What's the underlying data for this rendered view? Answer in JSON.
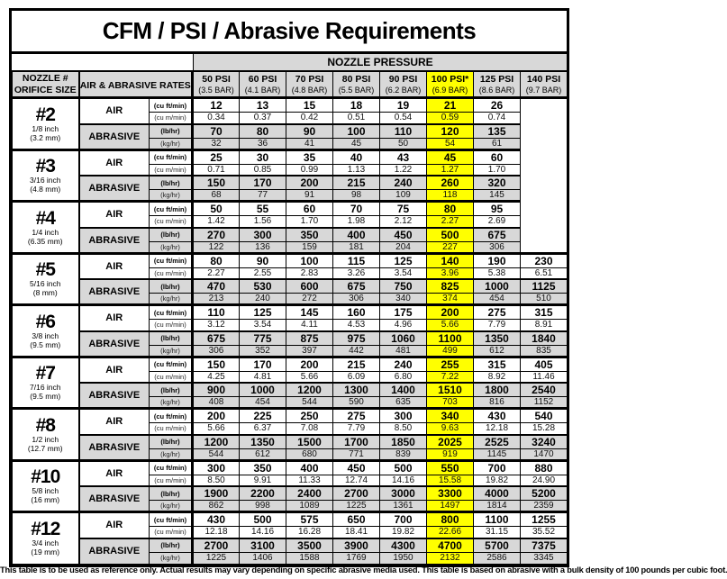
{
  "title": "CFM / PSI / Abrasive Requirements",
  "pressure_band": {
    "label": "NOZZLE PRESSURE"
  },
  "headers": {
    "nozzle_line1": "NOZZLE #",
    "nozzle_line2": "ORIFICE SIZE",
    "rates": "AIR & ABRASIVE RATES"
  },
  "pressure_columns": [
    {
      "psi": "50 PSI",
      "bar": "(3.5 BAR)",
      "highlight": false
    },
    {
      "psi": "60 PSI",
      "bar": "(4.1 BAR)",
      "highlight": false
    },
    {
      "psi": "70 PSI",
      "bar": "(4.8 BAR)",
      "highlight": false
    },
    {
      "psi": "80 PSI",
      "bar": "(5.5 BAR)",
      "highlight": false
    },
    {
      "psi": "90 PSI",
      "bar": "(6.2 BAR)",
      "highlight": false
    },
    {
      "psi": "100 PSI*",
      "bar": "(6.9 BAR)",
      "highlight": true
    },
    {
      "psi": "125 PSI",
      "bar": "(8.6 BAR)",
      "highlight": false
    },
    {
      "psi": "140 PSI",
      "bar": "(9.7 BAR)",
      "highlight": false
    }
  ],
  "rate_labels": {
    "air": "AIR",
    "abrasive": "ABRASIVE"
  },
  "unit_labels": [
    "(cu ft/min)",
    "(cu m/min)",
    "(lb/hr)",
    "(kg/hr)"
  ],
  "nozzles": [
    {
      "number": "#2",
      "inch": "1/8 inch",
      "mm": "(3.2 mm)",
      "rows": [
        [
          "12",
          "13",
          "15",
          "18",
          "19",
          "21",
          "26",
          ""
        ],
        [
          "0.34",
          "0.37",
          "0.42",
          "0.51",
          "0.54",
          "0.59",
          "0.74",
          ""
        ],
        [
          "70",
          "80",
          "90",
          "100",
          "110",
          "120",
          "135",
          ""
        ],
        [
          "32",
          "36",
          "41",
          "45",
          "50",
          "54",
          "61",
          ""
        ]
      ]
    },
    {
      "number": "#3",
      "inch": "3/16 inch",
      "mm": "(4.8 mm)",
      "rows": [
        [
          "25",
          "30",
          "35",
          "40",
          "43",
          "45",
          "60",
          ""
        ],
        [
          "0.71",
          "0.85",
          "0.99",
          "1.13",
          "1.22",
          "1.27",
          "1.70",
          ""
        ],
        [
          "150",
          "170",
          "200",
          "215",
          "240",
          "260",
          "320",
          ""
        ],
        [
          "68",
          "77",
          "91",
          "98",
          "109",
          "118",
          "145",
          ""
        ]
      ]
    },
    {
      "number": "#4",
      "inch": "1/4 inch",
      "mm": "(6.35 mm)",
      "rows": [
        [
          "50",
          "55",
          "60",
          "70",
          "75",
          "80",
          "95",
          ""
        ],
        [
          "1.42",
          "1.56",
          "1.70",
          "1.98",
          "2.12",
          "2.27",
          "2.69",
          ""
        ],
        [
          "270",
          "300",
          "350",
          "400",
          "450",
          "500",
          "675",
          ""
        ],
        [
          "122",
          "136",
          "159",
          "181",
          "204",
          "227",
          "306",
          ""
        ]
      ]
    },
    {
      "number": "#5",
      "inch": "5/16 inch",
      "mm": "(8 mm)",
      "rows": [
        [
          "80",
          "90",
          "100",
          "115",
          "125",
          "140",
          "190",
          "230"
        ],
        [
          "2.27",
          "2.55",
          "2.83",
          "3.26",
          "3.54",
          "3.96",
          "5.38",
          "6.51"
        ],
        [
          "470",
          "530",
          "600",
          "675",
          "750",
          "825",
          "1000",
          "1125"
        ],
        [
          "213",
          "240",
          "272",
          "306",
          "340",
          "374",
          "454",
          "510"
        ]
      ]
    },
    {
      "number": "#6",
      "inch": "3/8 inch",
      "mm": "(9.5 mm)",
      "rows": [
        [
          "110",
          "125",
          "145",
          "160",
          "175",
          "200",
          "275",
          "315"
        ],
        [
          "3.12",
          "3.54",
          "4.11",
          "4.53",
          "4.96",
          "5.66",
          "7.79",
          "8.91"
        ],
        [
          "675",
          "775",
          "875",
          "975",
          "1060",
          "1100",
          "1350",
          "1840"
        ],
        [
          "306",
          "352",
          "397",
          "442",
          "481",
          "499",
          "612",
          "835"
        ]
      ]
    },
    {
      "number": "#7",
      "inch": "7/16 inch",
      "mm": "(9.5 mm)",
      "rows": [
        [
          "150",
          "170",
          "200",
          "215",
          "240",
          "255",
          "315",
          "405"
        ],
        [
          "4.25",
          "4.81",
          "5.66",
          "6.09",
          "6.80",
          "7.22",
          "8.92",
          "11.46"
        ],
        [
          "900",
          "1000",
          "1200",
          "1300",
          "1400",
          "1510",
          "1800",
          "2540"
        ],
        [
          "408",
          "454",
          "544",
          "590",
          "635",
          "703",
          "816",
          "1152"
        ]
      ]
    },
    {
      "number": "#8",
      "inch": "1/2 inch",
      "mm": "(12.7 mm)",
      "rows": [
        [
          "200",
          "225",
          "250",
          "275",
          "300",
          "340",
          "430",
          "540"
        ],
        [
          "5.66",
          "6.37",
          "7.08",
          "7.79",
          "8.50",
          "9.63",
          "12.18",
          "15.28"
        ],
        [
          "1200",
          "1350",
          "1500",
          "1700",
          "1850",
          "2025",
          "2525",
          "3240"
        ],
        [
          "544",
          "612",
          "680",
          "771",
          "839",
          "919",
          "1145",
          "1470"
        ]
      ]
    },
    {
      "number": "#10",
      "inch": "5/8 inch",
      "mm": "(16 mm)",
      "rows": [
        [
          "300",
          "350",
          "400",
          "450",
          "500",
          "550",
          "700",
          "880"
        ],
        [
          "8.50",
          "9.91",
          "11.33",
          "12.74",
          "14.16",
          "15.58",
          "19.82",
          "24.90"
        ],
        [
          "1900",
          "2200",
          "2400",
          "2700",
          "3000",
          "3300",
          "4000",
          "5200"
        ],
        [
          "862",
          "998",
          "1089",
          "1225",
          "1361",
          "1497",
          "1814",
          "2359"
        ]
      ]
    },
    {
      "number": "#12",
      "inch": "3/4 inch",
      "mm": "(19 mm)",
      "rows": [
        [
          "430",
          "500",
          "575",
          "650",
          "700",
          "800",
          "1100",
          "1255"
        ],
        [
          "12.18",
          "14.16",
          "16.28",
          "18.41",
          "19.82",
          "22.66",
          "31.15",
          "35.52"
        ],
        [
          "2700",
          "3100",
          "3500",
          "3900",
          "4300",
          "4700",
          "5700",
          "7375"
        ],
        [
          "1225",
          "1406",
          "1588",
          "1769",
          "1950",
          "2132",
          "2586",
          "3345"
        ]
      ]
    }
  ],
  "footnote": "This table is to be used as reference only. Actual results may vary depending on specific abrasive media used. This table is based on abrasive with a bulk density of 100 pounds per cubic foot.",
  "colors": {
    "header_gray": "#d8d8d8",
    "highlight_yellow": "#ffff00",
    "border_black": "#000000",
    "background_white": "#ffffff"
  }
}
